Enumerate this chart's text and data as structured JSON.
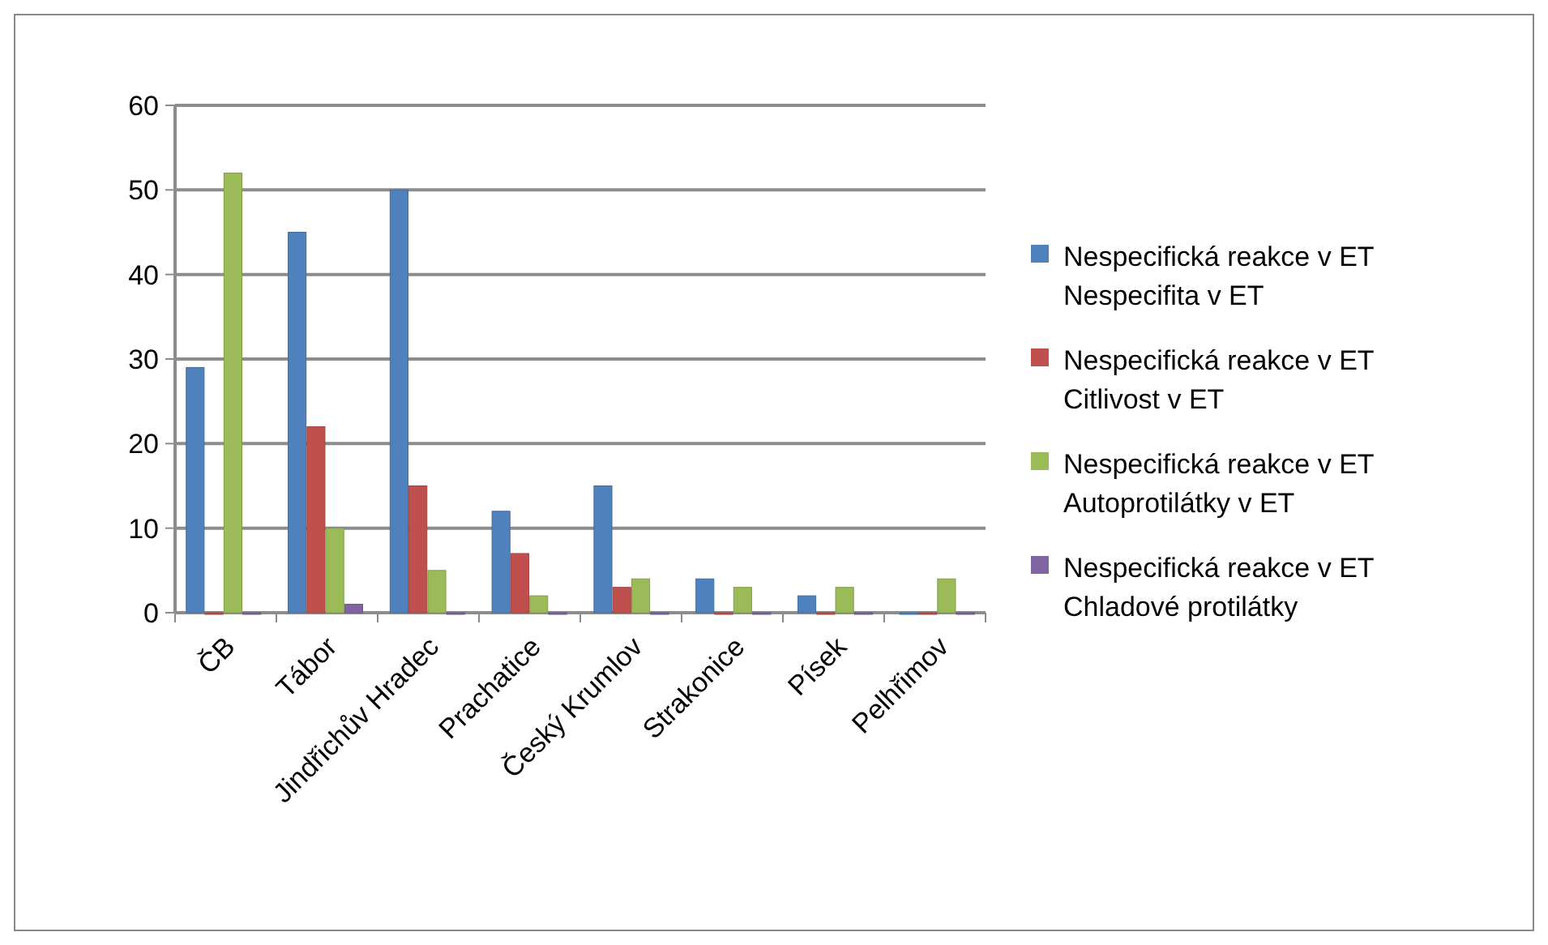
{
  "chart_data": {
    "type": "bar",
    "categories": [
      "ČB",
      "Tábor",
      "Jindřichův Hradec",
      "Prachatice",
      "Český Krumlov",
      "Strakonice",
      "Písek",
      "Pelhřimov"
    ],
    "series": [
      {
        "name": "Nespecifická reakce v ET Nespecifita v ET",
        "color": "#4f81bd",
        "values": [
          29,
          45,
          50,
          12,
          15,
          4,
          2,
          0
        ]
      },
      {
        "name": "Nespecifická reakce v ET Citlivost v ET",
        "color": "#c0504d",
        "values": [
          0,
          22,
          15,
          7,
          3,
          0,
          0,
          0
        ]
      },
      {
        "name": "Nespecifická reakce v ET Autoprotilátky v ET",
        "color": "#9bbb59",
        "values": [
          52,
          10,
          5,
          2,
          4,
          3,
          3,
          4
        ]
      },
      {
        "name": "Nespecifická reakce v ET Chladové protilátky",
        "color": "#8064a2",
        "values": [
          0,
          1,
          0,
          0,
          0,
          0,
          0,
          0
        ]
      }
    ],
    "ylim": [
      0,
      60
    ],
    "yticks": [
      0,
      10,
      20,
      30,
      40,
      50,
      60
    ],
    "grid": "y",
    "legend": "right"
  }
}
